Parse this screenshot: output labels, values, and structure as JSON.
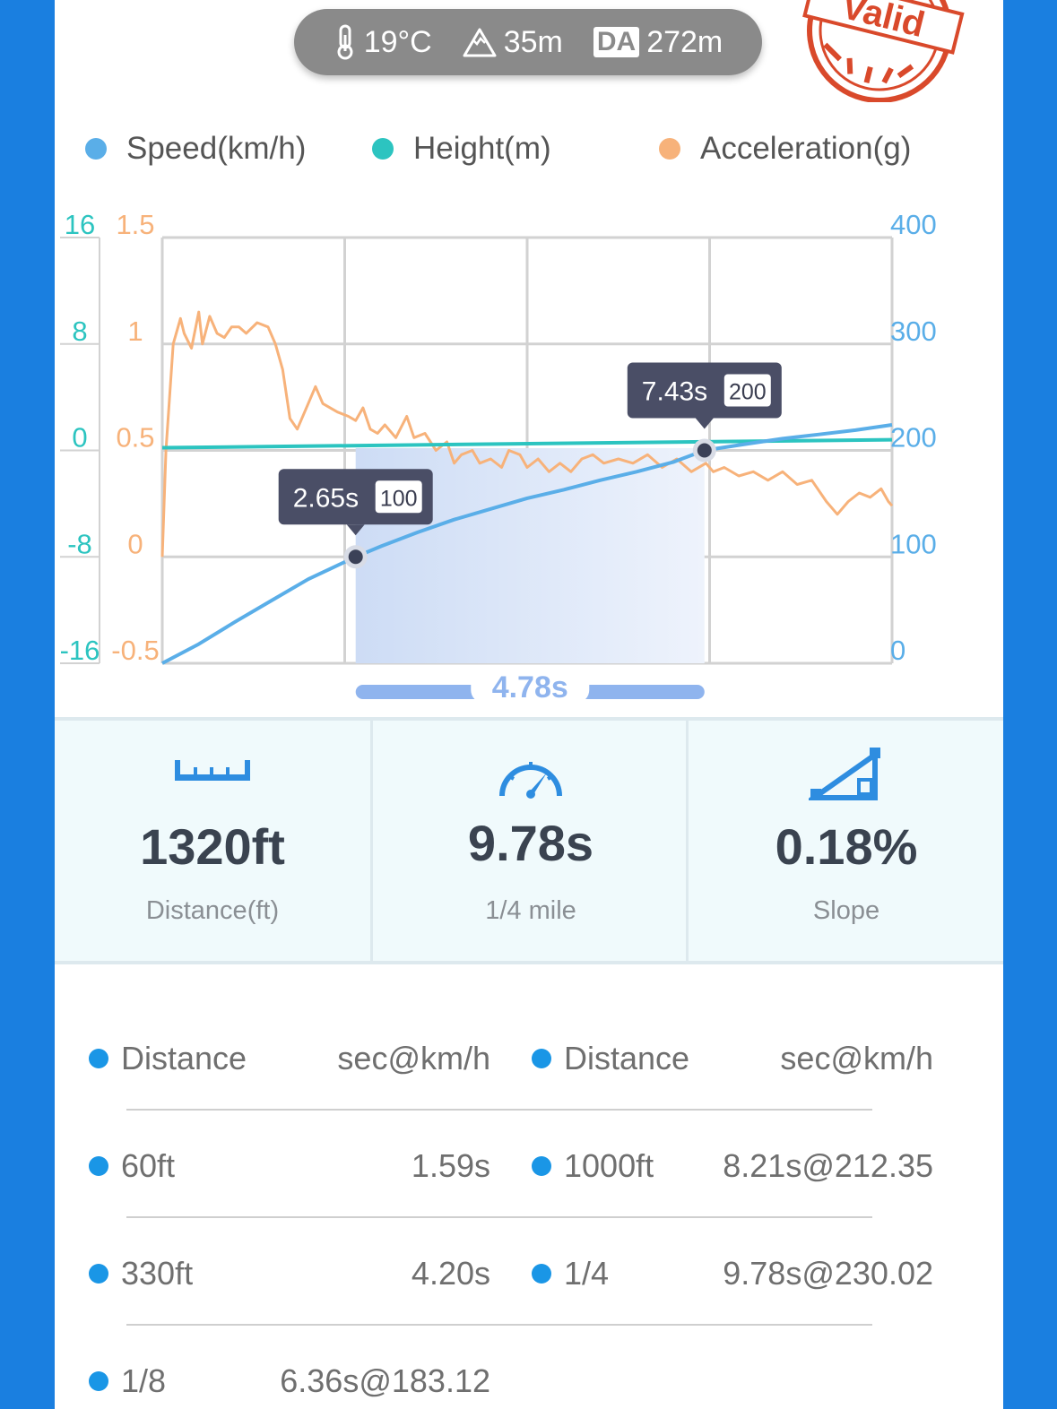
{
  "env": {
    "temperature": "19°C",
    "elevation": "35m",
    "da_label": "DA",
    "density_altitude": "272m"
  },
  "stamp_text": "Valid",
  "legend": [
    {
      "label": "Speed(km/h)",
      "color": "#5aaee8"
    },
    {
      "label": "Height(m)",
      "color": "#2cc4c0"
    },
    {
      "label": "Acceleration(g)",
      "color": "#f7b27a"
    }
  ],
  "chart_data": {
    "type": "line",
    "x_range": [
      0,
      10
    ],
    "axes": {
      "height_ticks": [
        "16",
        "8",
        "0",
        "-8",
        "-16"
      ],
      "accel_ticks": [
        "1.5",
        "1",
        "0.5",
        "0",
        "-0.5"
      ],
      "speed_ticks": [
        "400",
        "300",
        "200",
        "100",
        "0"
      ],
      "height_range": [
        -16,
        16
      ],
      "accel_range": [
        -0.5,
        1.5
      ],
      "speed_range": [
        0,
        400
      ]
    },
    "series": [
      {
        "name": "Speed(km/h)",
        "color": "#5aaee8",
        "x": [
          0,
          0.5,
          1,
          1.5,
          2,
          2.65,
          3,
          3.5,
          4,
          4.5,
          5,
          5.5,
          6,
          6.5,
          7,
          7.43,
          8,
          8.5,
          9,
          9.5,
          10
        ],
        "y": [
          0,
          18,
          39,
          59,
          79,
          100,
          110,
          123,
          135,
          145,
          155,
          163,
          172,
          180,
          189,
          200,
          206,
          211,
          215,
          219,
          224
        ]
      },
      {
        "name": "Height(m)",
        "color": "#2cc4c0",
        "x": [
          0,
          10
        ],
        "y": [
          0.2,
          0.8
        ]
      },
      {
        "name": "Acceleration(g)",
        "color": "#f7b27a",
        "x": [
          0,
          0.05,
          0.15,
          0.25,
          0.3,
          0.4,
          0.5,
          0.55,
          0.65,
          0.75,
          0.85,
          0.95,
          1.05,
          1.15,
          1.3,
          1.45,
          1.55,
          1.65,
          1.75,
          1.85,
          2.0,
          2.1,
          2.2,
          2.4,
          2.55,
          2.65,
          2.75,
          2.85,
          2.95,
          3.05,
          3.2,
          3.35,
          3.45,
          3.6,
          3.75,
          3.9,
          4.0,
          4.1,
          4.25,
          4.35,
          4.5,
          4.65,
          4.75,
          4.9,
          5.0,
          5.15,
          5.3,
          5.45,
          5.6,
          5.75,
          5.9,
          6.05,
          6.25,
          6.45,
          6.65,
          6.85,
          7.05,
          7.25,
          7.45,
          7.55,
          7.7,
          7.9,
          8.1,
          8.3,
          8.5,
          8.7,
          8.9,
          9.1,
          9.25,
          9.4,
          9.55,
          9.7,
          9.85,
          9.95,
          10
        ],
        "y": [
          0,
          0.5,
          1.0,
          1.12,
          1.05,
          0.98,
          1.15,
          1.0,
          1.13,
          1.05,
          1.03,
          1.08,
          1.08,
          1.05,
          1.1,
          1.08,
          1.0,
          0.88,
          0.65,
          0.6,
          0.72,
          0.8,
          0.72,
          0.68,
          0.66,
          0.64,
          0.7,
          0.6,
          0.58,
          0.62,
          0.56,
          0.66,
          0.56,
          0.58,
          0.5,
          0.54,
          0.44,
          0.48,
          0.5,
          0.44,
          0.46,
          0.42,
          0.5,
          0.48,
          0.42,
          0.46,
          0.4,
          0.44,
          0.4,
          0.46,
          0.48,
          0.44,
          0.46,
          0.44,
          0.48,
          0.42,
          0.46,
          0.4,
          0.44,
          0.4,
          0.42,
          0.38,
          0.4,
          0.36,
          0.4,
          0.34,
          0.36,
          0.26,
          0.2,
          0.26,
          0.3,
          0.28,
          0.32,
          0.26,
          0.24
        ]
      }
    ],
    "markers": [
      {
        "x": 2.65,
        "y": 100,
        "time_label": "2.65s",
        "value_label": "100"
      },
      {
        "x": 7.43,
        "y": 200,
        "time_label": "7.43s",
        "value_label": "200"
      }
    ],
    "interval": {
      "from": 2.65,
      "to": 7.43,
      "label": "4.78s"
    },
    "grid": true
  },
  "stats": [
    {
      "icon": "ruler-icon",
      "value": "1320ft",
      "label": "Distance(ft)"
    },
    {
      "icon": "speedometer-icon",
      "value": "9.78s",
      "label": "1/4 mile"
    },
    {
      "icon": "slope-icon",
      "value": "0.18%",
      "label": "Slope"
    }
  ],
  "splits": {
    "header": {
      "col1": "Distance",
      "col2": "sec@km/h",
      "col3": "Distance",
      "col4": "sec@km/h"
    },
    "rows": [
      {
        "d1": "60ft",
        "v1": "1.59s",
        "d2": "1000ft",
        "v2": "8.21s@212.35"
      },
      {
        "d1": "330ft",
        "v1": "4.20s",
        "d2": "1/4",
        "v2": "9.78s@230.02"
      },
      {
        "d1": "1/8",
        "v1": "6.36s@183.12",
        "d2": "",
        "v2": ""
      }
    ]
  }
}
